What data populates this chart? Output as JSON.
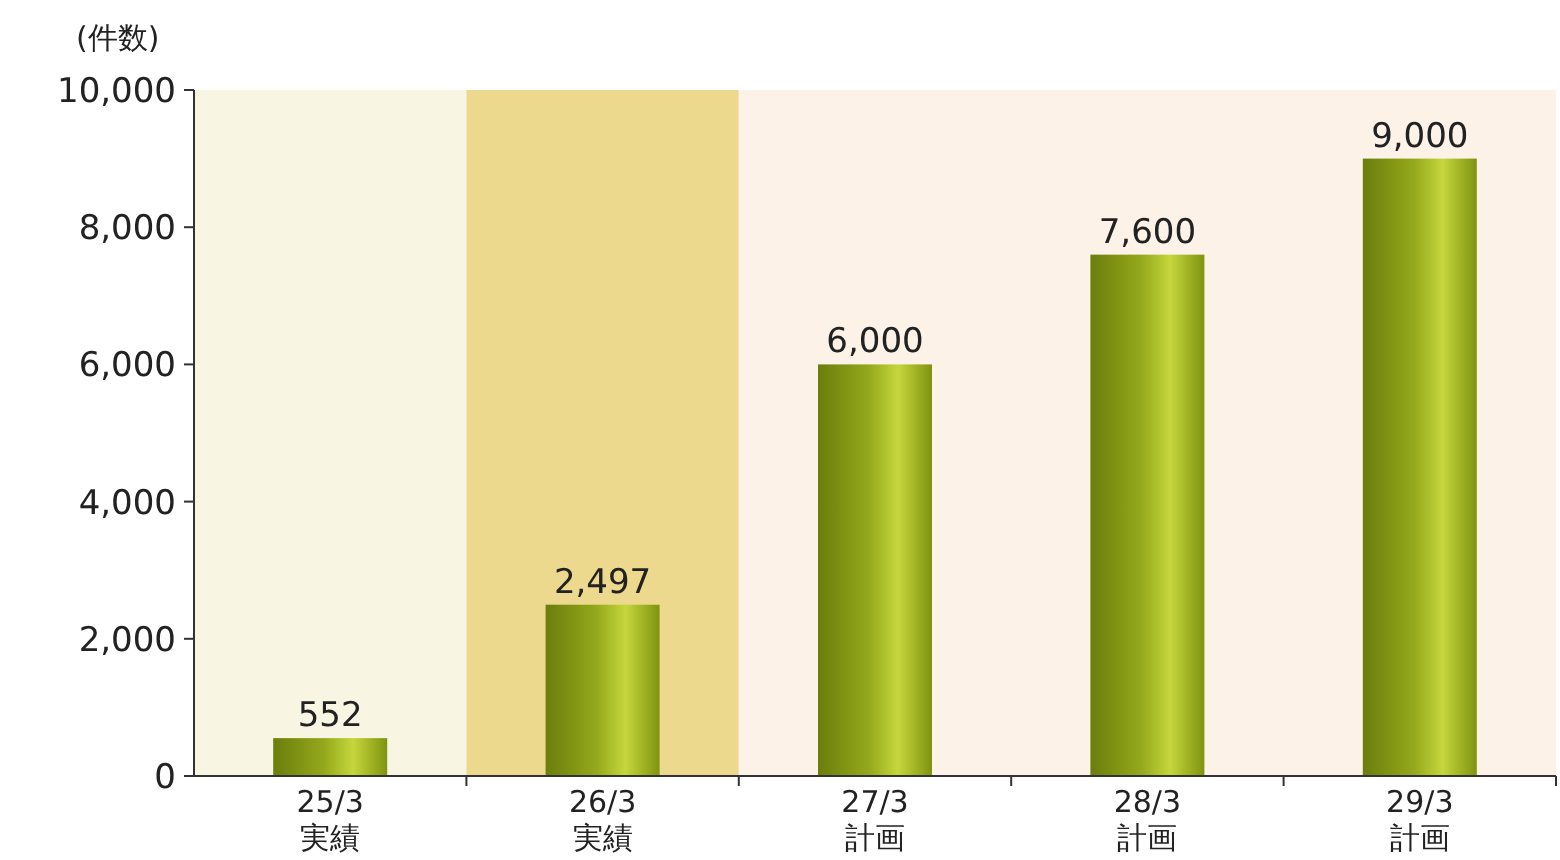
{
  "chart_data": {
    "type": "bar",
    "ylabel": "(件数)",
    "categories": [
      "25/3\n実績",
      "26/3\n実績",
      "27/3\n計画",
      "28/3\n計画",
      "29/3\n計画"
    ],
    "values": [
      552,
      2497,
      6000,
      7600,
      9000
    ],
    "value_labels": [
      "552",
      "2,497",
      "6,000",
      "7,600",
      "9,000"
    ],
    "color": "#94a91c",
    "ylim": [
      0,
      10000
    ],
    "yticks": [
      0,
      {
        "value": 2000,
        "label": "2,000"
      },
      {
        "value": 4000,
        "label": "4,000"
      },
      {
        "value": 6000,
        "label": "6,000"
      },
      {
        "value": 8000,
        "label": "8,000"
      },
      {
        "value": 10000,
        "label": "10,000"
      }
    ],
    "bands": [
      {
        "axis": "x",
        "from": "25/3\n実績",
        "to": "25/3\n実績",
        "color": "#f8f5e2"
      },
      {
        "axis": "x",
        "from": "26/3\n実績",
        "to": "26/3\n実績",
        "color": "#ecd98e"
      },
      {
        "axis": "x",
        "from": "27/3\n計画",
        "to": "29/3\n計画",
        "color": "#fcf2e8"
      }
    ]
  }
}
